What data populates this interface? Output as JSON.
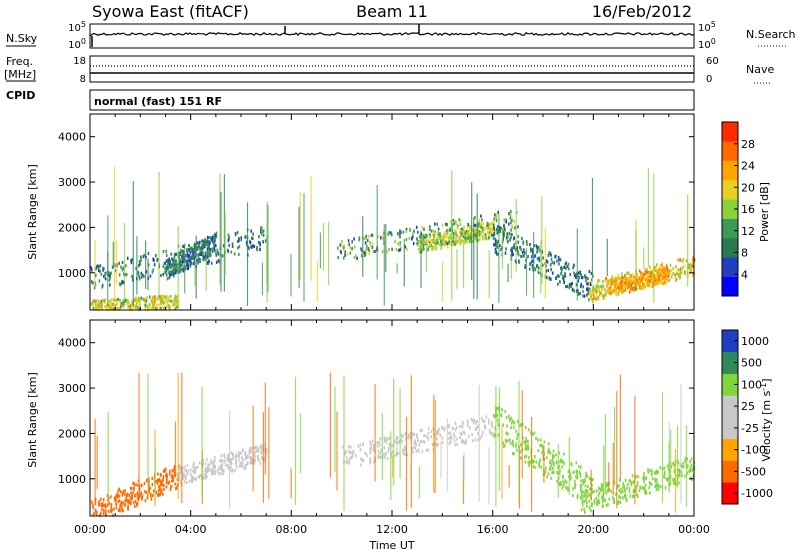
{
  "header": {
    "station": "Syowa East (fitACF)",
    "beam": "Beam 11",
    "date": "16/Feb/2012"
  },
  "nsky": {
    "label": "N.Sky",
    "right_label": "N.Search",
    "tick_top": "10^5",
    "tick_bottom": "10^0"
  },
  "freq": {
    "label_line1": "Freq.",
    "label_line2": "[MHz]",
    "right_label": "Nave",
    "left_ticks": [
      "18",
      "8"
    ],
    "right_ticks": [
      "60",
      "0"
    ]
  },
  "cpid": {
    "label": "CPID",
    "value": "normal (fast) 151 RF"
  },
  "colors": {
    "power": [
      "#0000ff",
      "#1f3fbf",
      "#2a7a50",
      "#3c9a55",
      "#8ccf3a",
      "#e8d020",
      "#ffa500",
      "#ff6a00",
      "#ff2a00"
    ],
    "velocity": [
      "#ff0000",
      "#ff6a00",
      "#ffa500",
      "#c8c8c8",
      "#c8c8c8",
      "#7fd63a",
      "#2e8b57",
      "#1f3fbf"
    ],
    "velocity_gray": "#c8c8c8"
  },
  "chart_data": [
    {
      "type": "heatmap",
      "panel": "power",
      "xlabel": "",
      "ylabel": "Slant Range [km]",
      "colorbar_label": "Power [dB]",
      "colorbar_ticks": [
        "4",
        "8",
        "12",
        "16",
        "20",
        "24",
        "28"
      ],
      "colorbar_range": [
        0,
        32
      ],
      "x_range_hours": [
        0,
        24
      ],
      "y_range_km": [
        180,
        4500
      ],
      "y_ticks": [
        "1000",
        "2000",
        "3000",
        "4000"
      ],
      "features": [
        {
          "x": [
            0.0,
            7.0
          ],
          "y": [
            900,
            1800
          ],
          "power_db": [
            4,
            16
          ]
        },
        {
          "x": [
            3.0,
            5.0
          ],
          "y": [
            1100,
            1700
          ],
          "power_db": [
            4,
            16
          ]
        },
        {
          "x": [
            0.0,
            3.5
          ],
          "y": [
            280,
            400
          ],
          "power_db": [
            14,
            26
          ]
        },
        {
          "x": [
            9.8,
            17.0
          ],
          "y": [
            1500,
            2200
          ],
          "power_db": [
            4,
            22
          ]
        },
        {
          "x": [
            13.0,
            16.0
          ],
          "y": [
            1650,
            2000
          ],
          "power_db": [
            14,
            24
          ]
        },
        {
          "x": [
            16.0,
            20.0
          ],
          "y": [
            1800,
            700
          ],
          "power_db": [
            4,
            14
          ]
        },
        {
          "x": [
            19.8,
            24.0
          ],
          "y": [
            600,
            1200
          ],
          "power_db": [
            16,
            30
          ]
        },
        {
          "x": [
            20.5,
            23.0
          ],
          "y": [
            700,
            1000
          ],
          "power_db": [
            22,
            30
          ]
        }
      ]
    },
    {
      "type": "heatmap",
      "panel": "velocity",
      "xlabel": "Time UT",
      "ylabel": "Slant Range [km]",
      "colorbar_label": "Velocity [m s^-1]",
      "colorbar_ticks": [
        "-1000",
        "-500",
        "-100",
        "-25",
        "25",
        "100",
        "500",
        "1000"
      ],
      "x_ticks": [
        "00:00",
        "04:00",
        "08:00",
        "12:00",
        "16:00",
        "20:00",
        "00:00"
      ],
      "x_range_hours": [
        0,
        24
      ],
      "y_range_km": [
        180,
        4500
      ],
      "y_ticks": [
        "1000",
        "2000",
        "3000",
        "4000"
      ],
      "features": [
        {
          "x": [
            0.0,
            3.5
          ],
          "y": [
            280,
            1100
          ],
          "velocity_ms": [
            -500,
            -100
          ]
        },
        {
          "x": [
            3.5,
            7.0
          ],
          "y": [
            1100,
            1600
          ],
          "velocity_ms": [
            -25,
            25
          ]
        },
        {
          "x": [
            10.0,
            16.0
          ],
          "y": [
            1500,
            2200
          ],
          "velocity_ms": [
            -25,
            25
          ]
        },
        {
          "x": [
            16.0,
            20.0
          ],
          "y": [
            2300,
            700
          ],
          "velocity_ms": [
            100,
            500
          ]
        },
        {
          "x": [
            19.5,
            24.0
          ],
          "y": [
            500,
            1300
          ],
          "velocity_ms": [
            100,
            500
          ]
        }
      ]
    }
  ]
}
